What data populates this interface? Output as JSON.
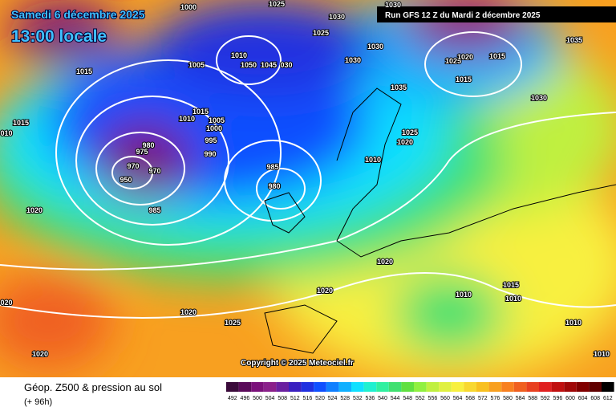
{
  "header": {
    "date": "Samedi 6 décembre 2025",
    "time": "13:00 locale",
    "run": "Run GFS 12 Z du Mardi 2 décembre 2025"
  },
  "copyright": "Copyright © 2025 Meteociel.fr",
  "footer": {
    "title": "Géop. Z500 & pression au sol",
    "lead": "(+ 96h)"
  },
  "legend": {
    "values": [
      492,
      496,
      500,
      504,
      508,
      512,
      516,
      520,
      524,
      528,
      532,
      536,
      540,
      544,
      548,
      552,
      556,
      560,
      564,
      568,
      572,
      576,
      580,
      584,
      588,
      592,
      596,
      600,
      604,
      608,
      612
    ],
    "colors": [
      "#3a0a3a",
      "#5a0a5a",
      "#7a107a",
      "#8a208a",
      "#6a20a0",
      "#3a20c0",
      "#2030e0",
      "#1050ff",
      "#1080ff",
      "#10b0ff",
      "#10e0ff",
      "#20f0d0",
      "#30f0a0",
      "#40e070",
      "#60e040",
      "#90f040",
      "#c0f040",
      "#e0f040",
      "#f8f040",
      "#f8d830",
      "#f8c020",
      "#f8a020",
      "#f88020",
      "#f06020",
      "#e84020",
      "#e02020",
      "#c01010",
      "#a00808",
      "#800000",
      "#600000",
      "#000000"
    ]
  },
  "isobars": [
    "1000",
    "1025",
    "1030",
    "1030",
    "1025",
    "1030",
    "1030",
    "1010",
    "1050",
    "1045",
    "030",
    "1005",
    "1015",
    "1025",
    "1020",
    "1015",
    "1015",
    "1035",
    "1035",
    "1030",
    "1015",
    "1010",
    "1005",
    "1000",
    "995",
    "990",
    "985",
    "980",
    "980",
    "975",
    "970",
    "970",
    "950",
    "985",
    "1025",
    "1020",
    "1010",
    "1020",
    "1020",
    "1020",
    "1010",
    "1010",
    "1015",
    "1020",
    "1025",
    "1010",
    "1020",
    "1010",
    "1015",
    "010",
    "020"
  ]
}
